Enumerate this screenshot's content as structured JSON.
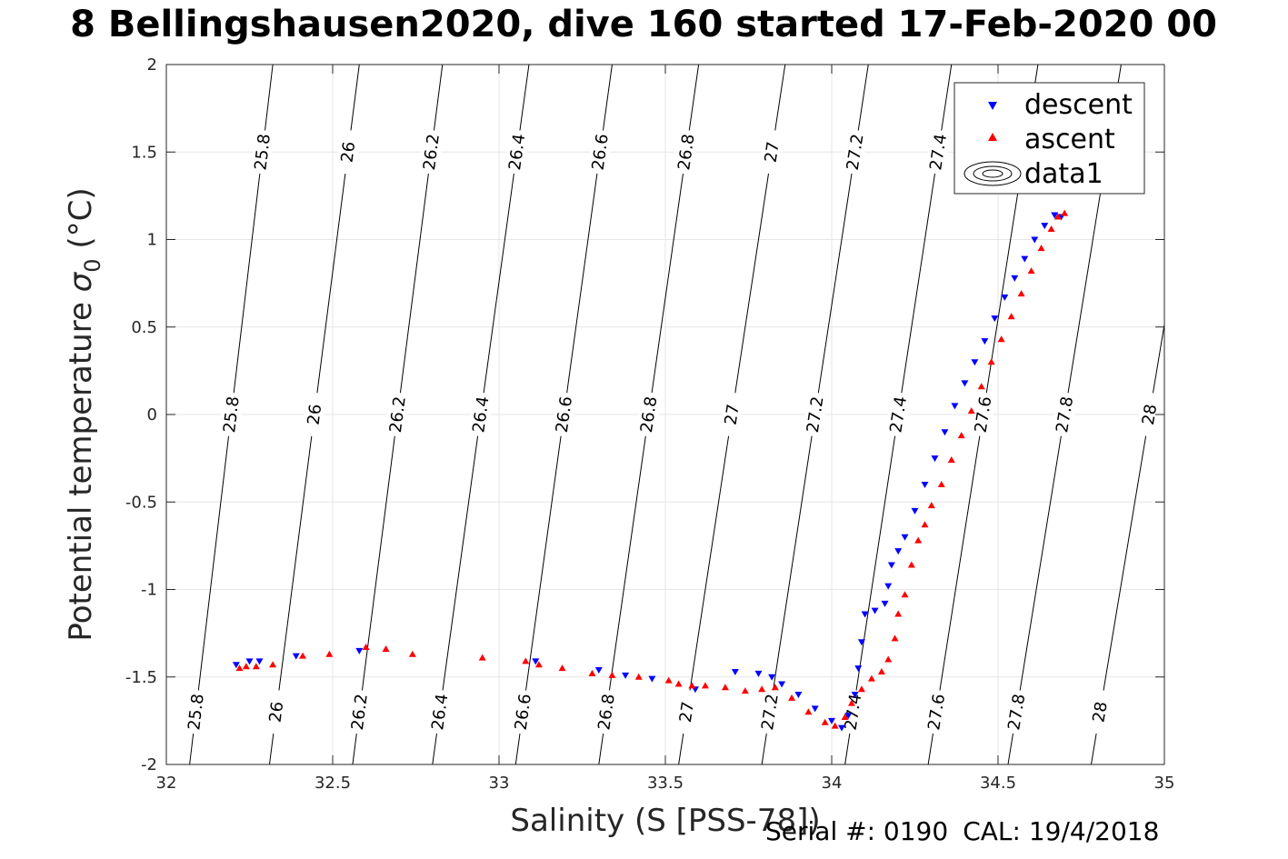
{
  "title": "8 Bellingshausen2020, dive 160 started 17-Feb-2020 00",
  "footer": {
    "serial": "Serial #: 0190",
    "cal": "CAL: 19/4/2018"
  },
  "chart_data": {
    "type": "scatter",
    "xlabel": "Salinity (S [PSS-78])",
    "ylabel_main": "Potential temperature ",
    "ylabel_sym": "σ",
    "ylabel_sub": "0",
    "ylabel_unit": " (°C)",
    "xlim": [
      32,
      35
    ],
    "ylim": [
      -2,
      2
    ],
    "xticks": [
      32,
      32.5,
      33,
      33.5,
      34,
      34.5,
      35
    ],
    "xtick_labels": [
      "32",
      "32.5",
      "33",
      "33.5",
      "34",
      "34.5",
      "35"
    ],
    "yticks": [
      -2,
      -1.5,
      -1,
      -0.5,
      0,
      0.5,
      1,
      1.5,
      2
    ],
    "ytick_labels": [
      "-2",
      "-1.5",
      "-1",
      "-0.5",
      "0",
      "0.5",
      "1",
      "1.5",
      "2"
    ],
    "grid": true,
    "legend": {
      "placement": "top-right",
      "entries": [
        "descent",
        "ascent",
        "data1"
      ]
    },
    "contours": {
      "levels": [
        25.8,
        26,
        26.2,
        26.4,
        26.6,
        26.8,
        27,
        27.2,
        27.4,
        27.6,
        27.8,
        28
      ],
      "labels": [
        "25.8",
        "26",
        "26.2",
        "26.4",
        "26.6",
        "26.8",
        "27",
        "27.2",
        "27.4",
        "27.6",
        "27.8",
        "28"
      ],
      "salinity_at_minus2": [
        32.07,
        32.31,
        32.56,
        32.8,
        33.05,
        33.3,
        33.54,
        33.79,
        34.04,
        34.29,
        34.53,
        34.78
      ],
      "salinity_at_plus2": [
        32.32,
        32.58,
        32.83,
        33.09,
        33.34,
        33.6,
        33.86,
        34.11,
        34.36,
        34.62,
        34.87,
        35.13
      ],
      "label_temps": [
        1.5,
        0,
        -1.7
      ]
    },
    "series": [
      {
        "name": "descent",
        "color": "#0000ff",
        "marker": "triangle-down",
        "points": [
          [
            32.21,
            -1.43
          ],
          [
            32.25,
            -1.41
          ],
          [
            32.28,
            -1.41
          ],
          [
            32.39,
            -1.38
          ],
          [
            32.58,
            -1.35
          ],
          [
            33.11,
            -1.41
          ],
          [
            33.3,
            -1.46
          ],
          [
            33.38,
            -1.49
          ],
          [
            33.46,
            -1.51
          ],
          [
            33.59,
            -1.57
          ],
          [
            33.71,
            -1.47
          ],
          [
            33.78,
            -1.48
          ],
          [
            33.82,
            -1.5
          ],
          [
            33.85,
            -1.54
          ],
          [
            33.9,
            -1.6
          ],
          [
            33.95,
            -1.68
          ],
          [
            34.0,
            -1.75
          ],
          [
            34.03,
            -1.79
          ],
          [
            34.05,
            -1.72
          ],
          [
            34.07,
            -1.6
          ],
          [
            34.08,
            -1.45
          ],
          [
            34.09,
            -1.3
          ],
          [
            34.1,
            -1.14
          ],
          [
            34.13,
            -1.12
          ],
          [
            34.16,
            -1.08
          ],
          [
            34.17,
            -0.98
          ],
          [
            34.18,
            -0.86
          ],
          [
            34.2,
            -0.78
          ],
          [
            34.22,
            -0.7
          ],
          [
            34.25,
            -0.55
          ],
          [
            34.28,
            -0.4
          ],
          [
            34.31,
            -0.25
          ],
          [
            34.34,
            -0.1
          ],
          [
            34.37,
            0.05
          ],
          [
            34.4,
            0.18
          ],
          [
            34.43,
            0.3
          ],
          [
            34.46,
            0.42
          ],
          [
            34.49,
            0.55
          ],
          [
            34.52,
            0.67
          ],
          [
            34.55,
            0.78
          ],
          [
            34.58,
            0.89
          ],
          [
            34.61,
            1.0
          ],
          [
            34.64,
            1.08
          ],
          [
            34.67,
            1.14
          ],
          [
            34.69,
            1.13
          ]
        ]
      },
      {
        "name": "ascent",
        "color": "#ff0000",
        "marker": "triangle-up",
        "points": [
          [
            32.22,
            -1.45
          ],
          [
            32.24,
            -1.44
          ],
          [
            32.27,
            -1.44
          ],
          [
            32.32,
            -1.43
          ],
          [
            32.41,
            -1.38
          ],
          [
            32.49,
            -1.37
          ],
          [
            32.6,
            -1.33
          ],
          [
            32.66,
            -1.34
          ],
          [
            32.74,
            -1.37
          ],
          [
            32.95,
            -1.39
          ],
          [
            33.08,
            -1.41
          ],
          [
            33.12,
            -1.43
          ],
          [
            33.19,
            -1.45
          ],
          [
            33.28,
            -1.48
          ],
          [
            33.34,
            -1.49
          ],
          [
            33.42,
            -1.5
          ],
          [
            33.51,
            -1.52
          ],
          [
            33.54,
            -1.54
          ],
          [
            33.58,
            -1.55
          ],
          [
            33.62,
            -1.55
          ],
          [
            33.68,
            -1.56
          ],
          [
            33.74,
            -1.58
          ],
          [
            33.79,
            -1.57
          ],
          [
            33.83,
            -1.56
          ],
          [
            33.88,
            -1.62
          ],
          [
            33.93,
            -1.7
          ],
          [
            33.98,
            -1.76
          ],
          [
            34.01,
            -1.78
          ],
          [
            34.04,
            -1.73
          ],
          [
            34.06,
            -1.65
          ],
          [
            34.09,
            -1.57
          ],
          [
            34.12,
            -1.51
          ],
          [
            34.15,
            -1.47
          ],
          [
            34.17,
            -1.4
          ],
          [
            34.19,
            -1.28
          ],
          [
            34.2,
            -1.14
          ],
          [
            34.22,
            -1.03
          ],
          [
            34.24,
            -0.86
          ],
          [
            34.26,
            -0.72
          ],
          [
            34.28,
            -0.63
          ],
          [
            34.3,
            -0.52
          ],
          [
            34.33,
            -0.4
          ],
          [
            34.36,
            -0.26
          ],
          [
            34.39,
            -0.12
          ],
          [
            34.42,
            0.02
          ],
          [
            34.45,
            0.16
          ],
          [
            34.48,
            0.3
          ],
          [
            34.51,
            0.43
          ],
          [
            34.54,
            0.56
          ],
          [
            34.57,
            0.69
          ],
          [
            34.6,
            0.82
          ],
          [
            34.63,
            0.95
          ],
          [
            34.66,
            1.06
          ],
          [
            34.68,
            1.13
          ],
          [
            34.7,
            1.15
          ]
        ]
      }
    ]
  }
}
